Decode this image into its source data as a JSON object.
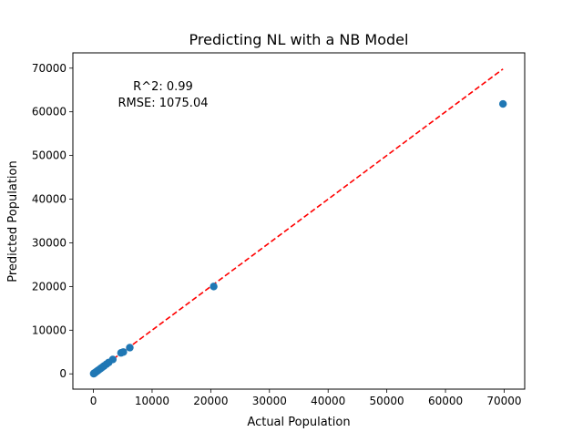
{
  "chart_data": {
    "type": "scatter",
    "title": "Predicting NL with a NB Model",
    "xlabel": "Actual Population",
    "ylabel": "Predicted Population",
    "xlim": [
      -3500,
      73500
    ],
    "ylim": [
      -3500,
      73500
    ],
    "xticks": [
      0,
      10000,
      20000,
      30000,
      40000,
      50000,
      60000,
      70000
    ],
    "yticks": [
      0,
      10000,
      20000,
      30000,
      40000,
      50000,
      60000,
      70000
    ],
    "grid": false,
    "annotations": [
      "R^2: 0.99",
      "RMSE: 1075.04"
    ],
    "points": [
      {
        "x": 69800,
        "y": 61800
      },
      {
        "x": 20500,
        "y": 20000
      },
      {
        "x": 6200,
        "y": 6000
      },
      {
        "x": 5100,
        "y": 5000
      },
      {
        "x": 4700,
        "y": 4800
      },
      {
        "x": 3300,
        "y": 3300
      },
      {
        "x": 2600,
        "y": 2600
      },
      {
        "x": 2200,
        "y": 2200
      },
      {
        "x": 1800,
        "y": 1800
      },
      {
        "x": 1500,
        "y": 1500
      },
      {
        "x": 1200,
        "y": 1200
      },
      {
        "x": 900,
        "y": 900
      },
      {
        "x": 700,
        "y": 700
      },
      {
        "x": 500,
        "y": 500
      },
      {
        "x": 350,
        "y": 350
      },
      {
        "x": 200,
        "y": 200
      },
      {
        "x": 100,
        "y": 100
      },
      {
        "x": 50,
        "y": 50
      }
    ],
    "reference_line": {
      "x": [
        0,
        69800
      ],
      "y": [
        0,
        69800
      ]
    },
    "colors": {
      "points": "#1f77b4",
      "reference_line": "#ff0000"
    }
  }
}
